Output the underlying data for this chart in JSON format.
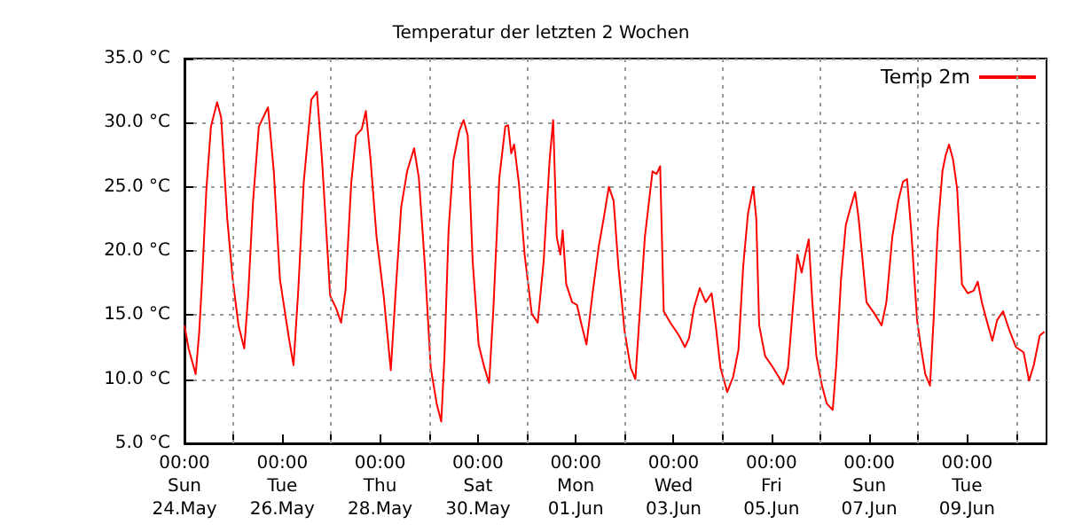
{
  "chart_data": {
    "type": "line",
    "title": "Temperatur der letzten 2 Wochen",
    "x": [
      "--05-24T00:00",
      "--05-24T02:00",
      "--05-24T05:30",
      "--05-24T07:15",
      "--05-24T08:40",
      "--05-24T10:45",
      "--05-24T13:00",
      "--05-24T16:00",
      "--05-24T18:00",
      "--05-24T21:00",
      "--05-24T23:40",
      "--05-25T02:30",
      "--05-25T05:20",
      "--05-25T07:15",
      "--05-25T09:40",
      "--05-25T12:30",
      "--05-25T17:00",
      "--05-25T19:50",
      "--05-25T22:50",
      "--05-26T03:15",
      "--05-26T05:30",
      "--05-26T07:50",
      "--05-26T10:30",
      "--05-26T14:15",
      "--05-26T17:00",
      "--05-26T19:30",
      "--05-26T23:30",
      "--05-27T02:30",
      "--05-27T04:50",
      "--05-27T07:00",
      "--05-27T09:50",
      "--05-27T12:10",
      "--05-27T15:00",
      "--05-27T17:00",
      "--05-27T19:20",
      "--05-27T22:15",
      "--05-28T01:45",
      "--05-28T05:15",
      "--05-28T07:30",
      "--05-28T10:20",
      "--05-28T13:15",
      "--05-28T16:40",
      "--05-28T19:00",
      "--05-28T22:00",
      "--05-29T00:50",
      "--05-29T03:45",
      "--05-29T06:00",
      "--05-29T07:35",
      "--05-29T09:35",
      "--05-29T12:00",
      "--05-29T14:55",
      "--05-29T17:00",
      "--05-29T19:00",
      "--05-29T21:25",
      "--05-30T00:20",
      "--05-30T03:10",
      "--05-30T05:30",
      "--05-30T07:35",
      "--05-30T10:30",
      "--05-30T13:25",
      "--05-30T14:50",
      "--05-30T16:20",
      "--05-30T17:45",
      "--05-30T20:05",
      "--05-30T22:55",
      "--05-31T02:25",
      "--05-31T05:20",
      "--05-31T08:15",
      "--05-31T11:10",
      "--05-31T12:55",
      "--05-31T14:40",
      "--05-31T16:25",
      "--05-31T17:35",
      "--05-31T19:20",
      "--05-31T22:15",
      "--06-01T00:35",
      "--06-01T02:55",
      "--06-01T05:15",
      "--06-01T08:25",
      "--06-01T11:20",
      "--06-01T13:40",
      "--06-01T16:15",
      "--06-01T18:35",
      "--06-01T20:55",
      "--06-02T00:00",
      "--06-02T02:55",
      "--06-02T05:15",
      "--06-02T07:00",
      "--06-02T09:55",
      "--06-02T13:40",
      "--06-02T15:40",
      "--06-02T17:25",
      "--06-02T19:10",
      "--06-02T22:25",
      "--06-03T02:40",
      "--06-03T05:35",
      "--06-03T07:35",
      "--06-03T09:55",
      "--06-03T12:50",
      "--06-03T15:45",
      "--06-03T18:40",
      "--06-03T20:40",
      "--06-03T23:00",
      "--06-04T02:20",
      "--06-04T05:15",
      "--06-04T07:50",
      "--06-04T10:10",
      "--06-04T12:30",
      "--06-04T15:05",
      "--06-04T16:35",
      "--06-04T18:00",
      "--06-04T20:55",
      "--06-05T00:00",
      "--06-05T03:30",
      "--06-05T05:50",
      "--06-05T08:10",
      "--06-05T10:30",
      "--06-05T12:45",
      "--06-05T14:50",
      "--06-05T16:35",
      "--06-05T18:20",
      "--06-05T20:05",
      "--06-05T22:05",
      "--06-06T00:50",
      "--06-06T03:10",
      "--06-06T06:05",
      "--06-06T07:50",
      "--06-06T10:10",
      "--06-06T12:30",
      "--06-06T14:30",
      "--06-06T17:05",
      "--06-06T18:50",
      "--06-06T22:40",
      "--06-07T02:35",
      "--06-07T06:05",
      "--06-07T08:25",
      "--06-07T11:20",
      "--06-07T14:15",
      "--06-07T16:35",
      "--06-07T18:35",
      "--06-07T20:35",
      "--06-07T23:30",
      "--06-08T01:10",
      "--06-08T03:30",
      "--06-08T05:50",
      "--06-08T07:35",
      "--06-08T09:35",
      "--06-08T11:55",
      "--06-08T13:25",
      "--06-08T15:10",
      "--06-08T17:10",
      "--06-08T19:10",
      "--06-08T21:30",
      "--06-09T00:20",
      "--06-09T03:15",
      "--06-09T05:15",
      "--06-09T07:15",
      "--06-09T09:35",
      "--06-09T12:25",
      "--06-09T14:45",
      "--06-09T17:40",
      "--06-09T20:35",
      "--06-10T00:00",
      "--06-10T03:45",
      "--06-10T06:25",
      "--06-10T08:45",
      "--06-10T11:40",
      "--06-10T14:00"
    ],
    "series": [
      {
        "name": "Temp 2m",
        "color": "#ff0000",
        "values": [
          14.2,
          12.4,
          10.4,
          13.7,
          17.8,
          24.8,
          29.7,
          31.6,
          30.4,
          22.5,
          17.8,
          14.2,
          12.4,
          16.5,
          23.9,
          29.7,
          31.2,
          26.2,
          17.8,
          13.2,
          11.1,
          16.9,
          25.3,
          31.8,
          32.4,
          27.1,
          16.5,
          15.5,
          14.4,
          16.9,
          25.3,
          29.0,
          29.5,
          30.9,
          27.1,
          21.1,
          16.5,
          10.7,
          16.5,
          23.4,
          26.2,
          28.0,
          25.7,
          18.8,
          10.9,
          8.1,
          6.7,
          11.8,
          21.6,
          27.1,
          29.4,
          30.2,
          29.0,
          19.2,
          12.7,
          10.9,
          9.7,
          15.5,
          25.7,
          29.7,
          29.8,
          27.6,
          28.3,
          25.3,
          19.7,
          15.1,
          14.4,
          19.2,
          27.1,
          30.2,
          21.1,
          19.7,
          21.6,
          17.4,
          16.0,
          15.8,
          14.2,
          12.7,
          16.9,
          20.4,
          22.5,
          25.0,
          23.9,
          18.8,
          13.7,
          10.9,
          10.0,
          14.2,
          21.1,
          26.2,
          26.0,
          26.6,
          15.3,
          14.4,
          13.4,
          12.5,
          13.2,
          15.5,
          17.1,
          16.0,
          16.7,
          14.2,
          10.9,
          9.0,
          10.2,
          12.3,
          18.8,
          22.9,
          25.0,
          22.5,
          14.2,
          11.8,
          11.1,
          10.2,
          9.6,
          10.9,
          15.5,
          19.7,
          18.3,
          19.7,
          20.9,
          16.0,
          11.8,
          9.5,
          8.1,
          7.6,
          11.1,
          17.8,
          22.0,
          23.2,
          24.6,
          22.5,
          16.0,
          15.1,
          14.2,
          16.0,
          21.1,
          23.9,
          25.4,
          25.6,
          21.6,
          14.6,
          12.7,
          10.4,
          9.5,
          14.6,
          21.6,
          26.2,
          27.4,
          28.3,
          27.1,
          24.8,
          17.4,
          16.7,
          16.9,
          17.6,
          16.0,
          14.6,
          13.0,
          14.6,
          15.3,
          13.9,
          12.5,
          12.1,
          9.9,
          11.1,
          13.4,
          13.7
        ]
      }
    ],
    "xlim": [
      "--05-24T00:00",
      "--06-10T15:00"
    ],
    "xticks": [
      {
        "value": "--05-24T00:00",
        "label": "00:00\nSun\n24.May"
      },
      {
        "value": "--05-25T00:00",
        "label": null
      },
      {
        "value": "--05-26T00:00",
        "label": "00:00\nTue\n26.May"
      },
      {
        "value": "--05-27T00:00",
        "label": null
      },
      {
        "value": "--05-28T00:00",
        "label": "00:00\nThu\n28.May"
      },
      {
        "value": "--05-29T00:00",
        "label": null
      },
      {
        "value": "--05-30T00:00",
        "label": "00:00\nSat\n30.May"
      },
      {
        "value": "--05-31T00:00",
        "label": null
      },
      {
        "value": "--06-01T00:00",
        "label": "00:00\nMon\n01.Jun"
      },
      {
        "value": "--06-02T00:00",
        "label": null
      },
      {
        "value": "--06-03T00:00",
        "label": "00:00\nWed\n03.Jun"
      },
      {
        "value": "--06-04T00:00",
        "label": null
      },
      {
        "value": "--06-05T00:00",
        "label": "00:00\nFri\n05.Jun"
      },
      {
        "value": "--06-06T00:00",
        "label": null
      },
      {
        "value": "--06-07T00:00",
        "label": "00:00\nSun\n07.Jun"
      },
      {
        "value": "--06-08T00:00",
        "label": null
      },
      {
        "value": "--06-09T00:00",
        "label": "00:00\nTue\n09.Jun"
      },
      {
        "value": "--06-10T00:00",
        "label": null
      }
    ],
    "ylim": [
      5,
      35
    ],
    "yticks": [
      {
        "value": 5,
        "label": "5.0 °C"
      },
      {
        "value": 10,
        "label": "10.0 °C"
      },
      {
        "value": 15,
        "label": "15.0 °C"
      },
      {
        "value": 20,
        "label": "20.0 °C"
      },
      {
        "value": 25,
        "label": "25.0 °C"
      },
      {
        "value": 30,
        "label": "30.0 °C"
      },
      {
        "value": 35,
        "label": "35.0 °C"
      }
    ],
    "grid": true,
    "legend": "top right",
    "marker": "none",
    "line_style": "solid"
  }
}
